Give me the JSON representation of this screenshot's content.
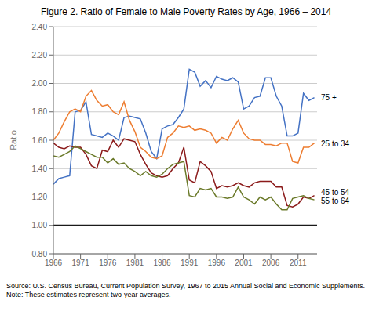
{
  "chart_data": {
    "type": "line",
    "title": "Figure 2. Ratio of Female to Male Poverty Rates by Age, 1966 – 2014",
    "ylabel": "Ratio",
    "source": "Source: U.S. Census Bureau, Current Population Survey, 1967 to 2015 Annual Social and Economic Supplements.\nNote: These estimates represent two-year averages.",
    "x": [
      1966,
      1967,
      1968,
      1969,
      1970,
      1971,
      1972,
      1973,
      1974,
      1975,
      1976,
      1977,
      1978,
      1979,
      1980,
      1981,
      1982,
      1983,
      1984,
      1985,
      1986,
      1987,
      1988,
      1989,
      1990,
      1991,
      1992,
      1993,
      1994,
      1995,
      1996,
      1997,
      1998,
      1999,
      2000,
      2001,
      2002,
      2003,
      2004,
      2005,
      2006,
      2007,
      2008,
      2009,
      2010,
      2011,
      2012,
      2013,
      2014
    ],
    "xlim": [
      1966,
      2014.5
    ],
    "xticks": [
      1966,
      1971,
      1976,
      1981,
      1986,
      1991,
      1996,
      2001,
      2006,
      2011
    ],
    "ylim": [
      0.8,
      2.4
    ],
    "yticks": [
      {
        "value": 0.8,
        "label": "0.80"
      },
      {
        "value": 1.0,
        "label": "1.00"
      },
      {
        "value": 1.2,
        "label": "1.20"
      },
      {
        "value": 1.4,
        "label": "1.40"
      },
      {
        "value": 1.6,
        "label": "1.60"
      },
      {
        "value": 1.8,
        "label": "1.80"
      },
      {
        "value": 2.0,
        "label": "2.00"
      },
      {
        "value": 2.2,
        "label": "2.20"
      },
      {
        "value": 2.4,
        "label": "2.40"
      }
    ],
    "grid": "y",
    "baseline": {
      "y": 1.0,
      "color": "#1a1a1a"
    },
    "series": [
      {
        "name": "75 +",
        "color": "#4472C4",
        "values": [
          1.29,
          1.33,
          1.34,
          1.35,
          1.8,
          1.81,
          1.87,
          1.64,
          1.63,
          1.62,
          1.65,
          1.63,
          1.6,
          1.76,
          1.77,
          1.76,
          1.75,
          1.65,
          1.52,
          1.47,
          1.68,
          1.7,
          1.71,
          1.76,
          1.82,
          2.1,
          2.08,
          1.98,
          2.02,
          1.97,
          2.05,
          2.03,
          2.02,
          2.04,
          2.01,
          1.82,
          1.84,
          1.9,
          1.91,
          2.04,
          2.04,
          1.91,
          1.84,
          1.63,
          1.63,
          1.65,
          1.93,
          1.88,
          1.9
        ]
      },
      {
        "name": "25 to 34",
        "color": "#ED7D31",
        "values": [
          1.6,
          1.65,
          1.73,
          1.8,
          1.82,
          1.8,
          1.91,
          1.95,
          1.88,
          1.84,
          1.85,
          1.8,
          1.78,
          1.87,
          1.74,
          1.66,
          1.55,
          1.52,
          1.48,
          1.47,
          1.49,
          1.62,
          1.65,
          1.7,
          1.69,
          1.7,
          1.67,
          1.68,
          1.67,
          1.65,
          1.58,
          1.62,
          1.6,
          1.68,
          1.74,
          1.65,
          1.61,
          1.6,
          1.6,
          1.57,
          1.57,
          1.56,
          1.58,
          1.58,
          1.45,
          1.44,
          1.55,
          1.55,
          1.58
        ]
      },
      {
        "name": "45 to 54",
        "color": "#8B1A1A",
        "values": [
          1.58,
          1.55,
          1.54,
          1.56,
          1.55,
          1.55,
          1.5,
          1.42,
          1.4,
          1.53,
          1.52,
          1.6,
          1.55,
          1.61,
          1.6,
          1.59,
          1.5,
          1.43,
          1.37,
          1.35,
          1.34,
          1.35,
          1.4,
          1.44,
          1.55,
          1.32,
          1.3,
          1.45,
          1.42,
          1.38,
          1.26,
          1.28,
          1.27,
          1.28,
          1.3,
          1.28,
          1.27,
          1.3,
          1.31,
          1.31,
          1.31,
          1.27,
          1.27,
          1.14,
          1.13,
          1.15,
          1.2,
          1.19,
          1.21
        ]
      },
      {
        "name": "55 to 64",
        "color": "#6B7A2A",
        "values": [
          1.49,
          1.48,
          1.5,
          1.52,
          1.56,
          1.54,
          1.52,
          1.5,
          1.48,
          1.48,
          1.44,
          1.47,
          1.43,
          1.44,
          1.4,
          1.38,
          1.35,
          1.38,
          1.35,
          1.34,
          1.36,
          1.4,
          1.43,
          1.44,
          1.45,
          1.21,
          1.2,
          1.26,
          1.25,
          1.26,
          1.2,
          1.2,
          1.19,
          1.2,
          1.27,
          1.2,
          1.18,
          1.15,
          1.2,
          1.18,
          1.2,
          1.15,
          1.11,
          1.11,
          1.19,
          1.2,
          1.21,
          1.19,
          1.18
        ]
      }
    ],
    "annotations": [
      {
        "text": "75 +",
        "x": 2014.5,
        "y": 1.9
      },
      {
        "text": "25 to 34",
        "x": 2014.5,
        "y": 1.575
      },
      {
        "text": "45 to 54",
        "x": 2014.5,
        "y": 1.235
      },
      {
        "text": "55 to 64",
        "x": 2014.5,
        "y": 1.175
      }
    ]
  }
}
